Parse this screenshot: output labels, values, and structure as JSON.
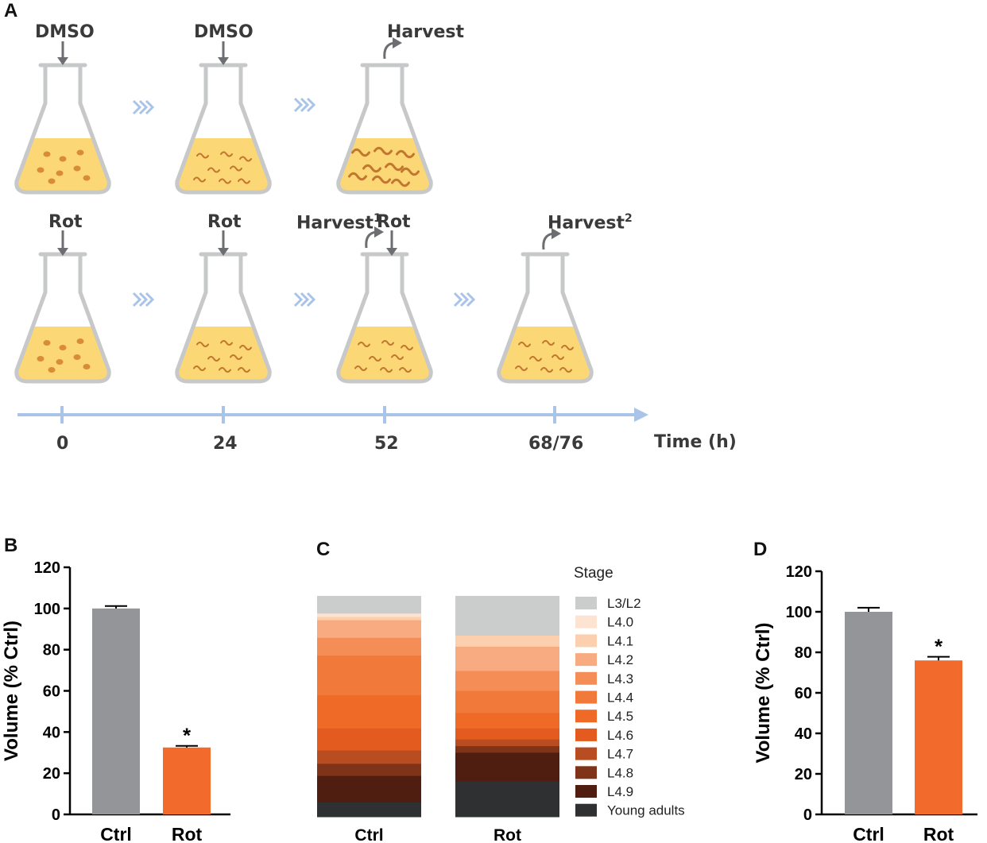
{
  "panel_a": {
    "letter": "A",
    "top_row_labels": [
      "DMSO",
      "DMSO",
      "Harvest"
    ],
    "bottom_row_labels": [
      "Rot",
      "Rot",
      "Harvest",
      "1",
      "Rot",
      "Harvest",
      "2"
    ],
    "time_ticks": [
      "0",
      "24",
      "52",
      "68/76"
    ],
    "time_axis_label": "Time (h)"
  },
  "panel_letters": {
    "b": "B",
    "c": "C",
    "d": "D"
  },
  "chart_data": [
    {
      "id": "B",
      "type": "bar",
      "categories": [
        "Ctrl",
        "Rot"
      ],
      "values": [
        100,
        32.5
      ],
      "errors": [
        1.2,
        0.8
      ],
      "colors": [
        "#939598",
        "#f26b2d"
      ],
      "significance": [
        "",
        "*"
      ],
      "ylabel": "Volume (% Ctrl)",
      "ylim": [
        0,
        120
      ],
      "yticks": [
        "0",
        "20",
        "40",
        "60",
        "80",
        "100",
        "120"
      ]
    },
    {
      "id": "C",
      "type": "stacked-bar",
      "categories": [
        "Ctrl",
        "Rot"
      ],
      "legend_title": "Stage",
      "stages": [
        {
          "name": "L3/L2",
          "color": "#cbcccc",
          "values": [
            8,
            18
          ]
        },
        {
          "name": "L4.0",
          "color": "#fde3d2",
          "values": [
            1.5,
            0
          ]
        },
        {
          "name": "L4.1",
          "color": "#fcd0ae",
          "values": [
            1.5,
            5
          ]
        },
        {
          "name": "L4.2",
          "color": "#f8aa80",
          "values": [
            8,
            11
          ]
        },
        {
          "name": "L4.3",
          "color": "#f48e56",
          "values": [
            8,
            9
          ]
        },
        {
          "name": "L4.4",
          "color": "#f1793a",
          "values": [
            18,
            10
          ]
        },
        {
          "name": "L4.5",
          "color": "#ef6a27",
          "values": [
            15,
            7
          ]
        },
        {
          "name": "L4.6",
          "color": "#e35b1e",
          "values": [
            10,
            5
          ]
        },
        {
          "name": "L4.7",
          "color": "#b84d22",
          "values": [
            6,
            3
          ]
        },
        {
          "name": "L4.8",
          "color": "#7f3419",
          "values": [
            5.5,
            3
          ]
        },
        {
          "name": "L4.9",
          "color": "#4f1e10",
          "values": [
            12,
            13
          ]
        },
        {
          "name": "Young adults",
          "color": "#2e3032",
          "values": [
            6.5,
            16
          ]
        }
      ]
    },
    {
      "id": "D",
      "type": "bar",
      "categories": [
        "Ctrl",
        "Rot"
      ],
      "values": [
        100,
        76
      ],
      "errors": [
        2,
        1.8
      ],
      "colors": [
        "#939598",
        "#f26b2d"
      ],
      "significance": [
        "",
        "*"
      ],
      "ylabel": "Volume (% Ctrl)",
      "ylim": [
        0,
        120
      ],
      "yticks": [
        "0",
        "20",
        "40",
        "60",
        "80",
        "100",
        "120"
      ]
    }
  ]
}
